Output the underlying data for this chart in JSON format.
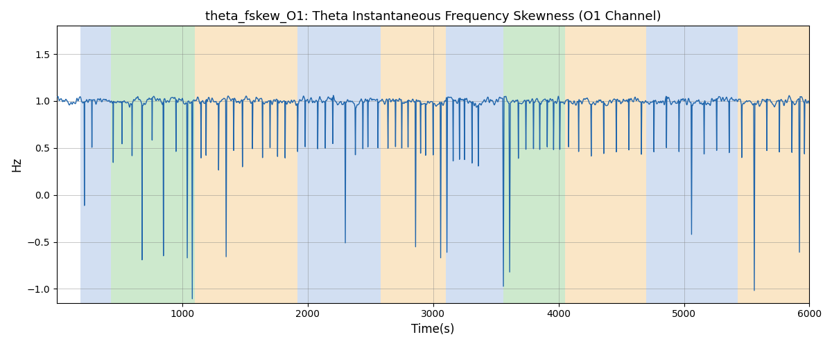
{
  "title": "theta_fskew_O1: Theta Instantaneous Frequency Skewness (O1 Channel)",
  "xlabel": "Time(s)",
  "ylabel": "Hz",
  "xlim": [
    0,
    6000
  ],
  "ylim": [
    -1.15,
    1.8
  ],
  "background_color": "#ffffff",
  "line_color": "#2166ac",
  "line_width": 1.0,
  "figsize": [
    12,
    5
  ],
  "dpi": 100,
  "regions": [
    {
      "start": 190,
      "end": 430,
      "color": "#aec6e8",
      "alpha": 0.55
    },
    {
      "start": 430,
      "end": 1100,
      "color": "#90d090",
      "alpha": 0.45
    },
    {
      "start": 1100,
      "end": 1920,
      "color": "#f5c882",
      "alpha": 0.45
    },
    {
      "start": 1920,
      "end": 2580,
      "color": "#aec6e8",
      "alpha": 0.55
    },
    {
      "start": 2580,
      "end": 3100,
      "color": "#f5c882",
      "alpha": 0.45
    },
    {
      "start": 3100,
      "end": 3460,
      "color": "#aec6e8",
      "alpha": 0.55
    },
    {
      "start": 3460,
      "end": 3560,
      "color": "#aec6e8",
      "alpha": 0.55
    },
    {
      "start": 3560,
      "end": 4050,
      "color": "#90d090",
      "alpha": 0.45
    },
    {
      "start": 4050,
      "end": 4700,
      "color": "#f5c882",
      "alpha": 0.45
    },
    {
      "start": 4700,
      "end": 5430,
      "color": "#aec6e8",
      "alpha": 0.55
    },
    {
      "start": 5430,
      "end": 6000,
      "color": "#f5c882",
      "alpha": 0.45
    }
  ],
  "yticks": [
    -1.0,
    -0.5,
    0.0,
    0.5,
    1.0,
    1.5
  ],
  "xticks": [
    1000,
    2000,
    3000,
    4000,
    5000,
    6000
  ]
}
